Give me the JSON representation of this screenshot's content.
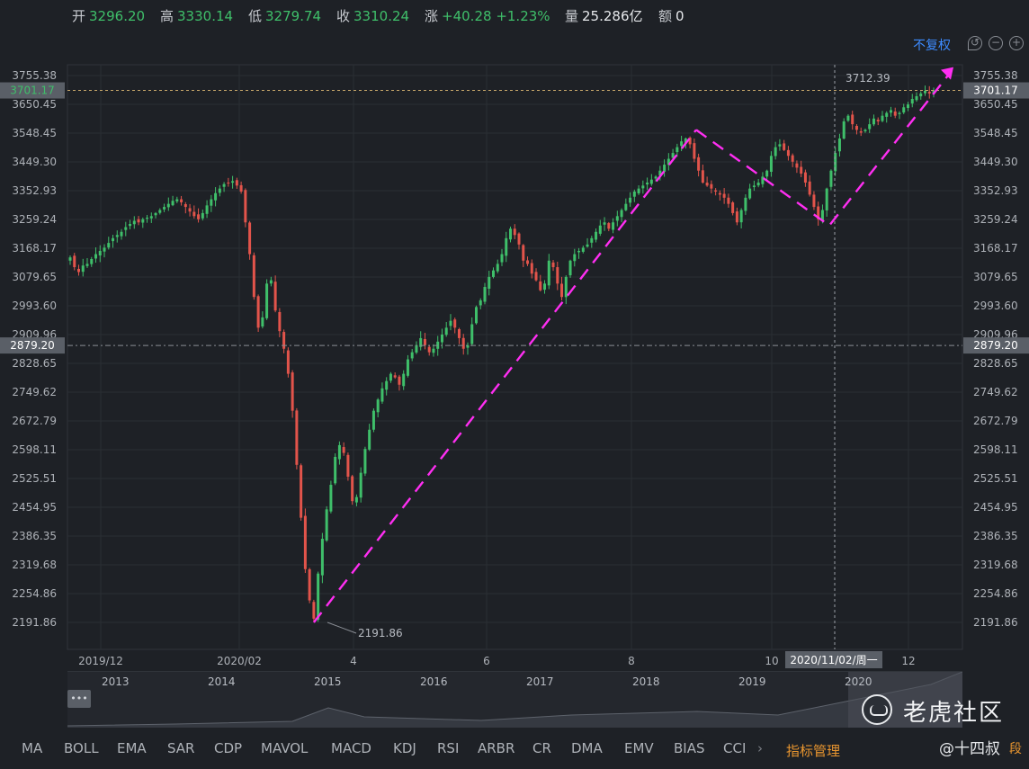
{
  "quote": {
    "open_label": "开",
    "open": "3296.20",
    "high_label": "高",
    "high": "3330.14",
    "low_label": "低",
    "low": "3279.74",
    "close_label": "收",
    "close": "3310.24",
    "change_label": "涨",
    "change": "+40.28",
    "change_pct": "+1.23%",
    "volume_label": "量",
    "volume": "25.286亿",
    "amount_label": "额",
    "amount": "0"
  },
  "controls": {
    "adjust_label": "不复权",
    "icons": [
      "undo-icon",
      "zoom-out-icon",
      "zoom-in-icon"
    ]
  },
  "colors": {
    "up": "#3fbf6a",
    "down": "#e2544b",
    "annotation": "#ff2ef2",
    "accent": "#3d8bff",
    "background": "#1e2126"
  },
  "chart_data": {
    "type": "candlestick",
    "y_tick_labels": [
      "3755.38",
      "3650.45",
      "3548.45",
      "3449.30",
      "3352.93",
      "3259.24",
      "3168.17",
      "3079.65",
      "2993.60",
      "2909.96",
      "2828.65",
      "2749.62",
      "2672.79",
      "2598.11",
      "2525.51",
      "2454.95",
      "2386.35",
      "2319.68",
      "2254.86",
      "2191.86"
    ],
    "ylim": [
      2191.86,
      3755.38
    ],
    "x_tick_labels": [
      "2019/12",
      "2020/02",
      "4",
      "6",
      "8",
      "10",
      "12"
    ],
    "crosshair_value_label": "3701.17",
    "reference_line_label": "2879.20",
    "crosshair_date_label": "2020/11/02/周一",
    "high_annotation": "3712.39",
    "low_annotation": "2191.86",
    "closes": [
      3140,
      3110,
      3095,
      3115,
      3120,
      3135,
      3150,
      3160,
      3170,
      3185,
      3200,
      3210,
      3220,
      3235,
      3245,
      3255,
      3250,
      3260,
      3265,
      3270,
      3280,
      3290,
      3300,
      3310,
      3320,
      3325,
      3315,
      3300,
      3285,
      3270,
      3260,
      3280,
      3305,
      3325,
      3345,
      3360,
      3375,
      3380,
      3385,
      3370,
      3350,
      3250,
      3150,
      3020,
      2930,
      2960,
      3060,
      3070,
      2980,
      2920,
      2870,
      2800,
      2700,
      2560,
      2430,
      2310,
      2240,
      2200,
      2300,
      2380,
      2450,
      2510,
      2580,
      2610,
      2590,
      2530,
      2470,
      2480,
      2540,
      2600,
      2650,
      2700,
      2730,
      2760,
      2780,
      2800,
      2790,
      2770,
      2800,
      2840,
      2860,
      2880,
      2900,
      2880,
      2860,
      2870,
      2890,
      2910,
      2930,
      2950,
      2930,
      2900,
      2870,
      2880,
      2940,
      2990,
      3010,
      3050,
      3080,
      3100,
      3120,
      3150,
      3200,
      3230,
      3210,
      3180,
      3130,
      3120,
      3090,
      3070,
      3040,
      3060,
      3130,
      3110,
      3060,
      3020,
      3080,
      3130,
      3150,
      3160,
      3170,
      3180,
      3200,
      3220,
      3240,
      3250,
      3230,
      3250,
      3270,
      3290,
      3310,
      3330,
      3350,
      3360,
      3370,
      3380,
      3390,
      3400,
      3420,
      3440,
      3460,
      3480,
      3500,
      3520,
      3530,
      3510,
      3460,
      3420,
      3380,
      3370,
      3360,
      3350,
      3340,
      3330,
      3310,
      3280,
      3250,
      3290,
      3330,
      3360,
      3370,
      3380,
      3400,
      3420,
      3470,
      3500,
      3510,
      3490,
      3470,
      3450,
      3430,
      3410,
      3380,
      3340,
      3300,
      3260,
      3290,
      3360,
      3420,
      3480,
      3530,
      3590,
      3610,
      3580,
      3560,
      3550,
      3560,
      3580,
      3600,
      3590,
      3610,
      3620,
      3630,
      3610,
      3620,
      3640,
      3650,
      3670,
      3680,
      3690,
      3700,
      3690,
      3701
    ],
    "closes_note_units": "index points"
  },
  "indicators": [
    "MA",
    "BOLL",
    "EMA",
    "SAR",
    "CDP",
    "MAVOL",
    "MACD",
    "KDJ",
    "RSI",
    "ARBR",
    "CR",
    "DMA",
    "EMV",
    "BIAS",
    "CCI"
  ],
  "indicator_manager": "指标管理",
  "navigator": {
    "year_labels": [
      "2013",
      "2014",
      "2015",
      "2016",
      "2017",
      "2018",
      "2019",
      "2020"
    ],
    "handle_label": "•••"
  },
  "watermark": {
    "brand": "老虎社区",
    "handle": "@十四叔",
    "suffix": "段"
  }
}
